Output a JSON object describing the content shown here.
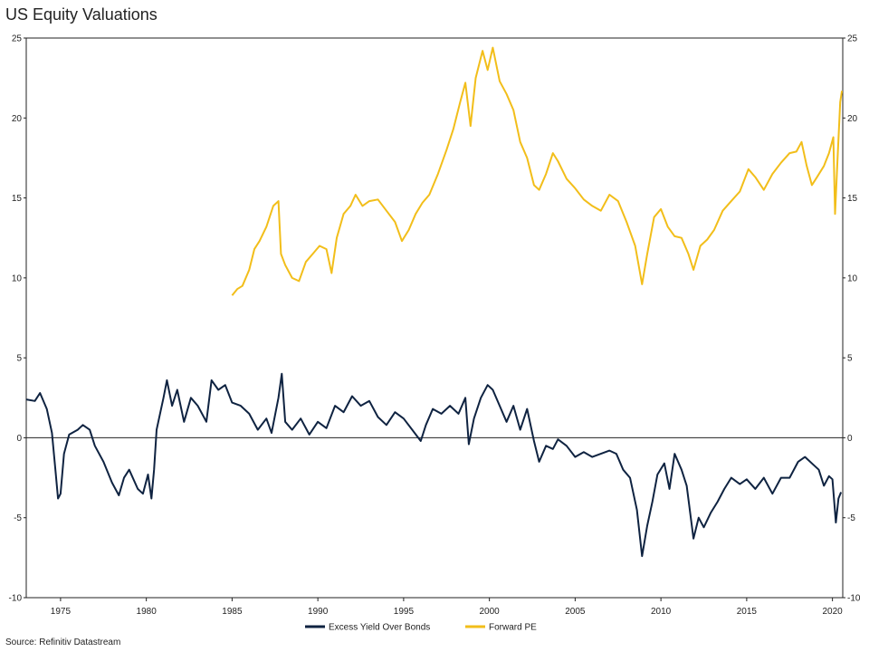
{
  "title": "US Equity Valuations",
  "source": "Source: Refinitiv Datastream",
  "chart_data": {
    "type": "line",
    "xlim": [
      1973.0,
      2020.6
    ],
    "ylim_left": [
      -10,
      25
    ],
    "ylim_right": [
      -10,
      25
    ],
    "y_ticks": [
      -10,
      -5,
      0,
      5,
      10,
      15,
      20,
      25
    ],
    "x_ticks": [
      1975,
      1980,
      1985,
      1990,
      1995,
      2000,
      2005,
      2010,
      2015,
      2020
    ],
    "grid": false,
    "legend_position": "bottom-center",
    "series": [
      {
        "name": "Excess Yield Over Bonds",
        "color": "#0f2341",
        "points": [
          [
            1973.0,
            2.4
          ],
          [
            1973.5,
            2.3
          ],
          [
            1973.8,
            2.8
          ],
          [
            1974.2,
            1.8
          ],
          [
            1974.5,
            0.3
          ],
          [
            1974.7,
            -2.0
          ],
          [
            1974.85,
            -3.8
          ],
          [
            1975.0,
            -3.5
          ],
          [
            1975.2,
            -1.0
          ],
          [
            1975.5,
            0.2
          ],
          [
            1976.0,
            0.5
          ],
          [
            1976.3,
            0.8
          ],
          [
            1976.7,
            0.5
          ],
          [
            1977.0,
            -0.5
          ],
          [
            1977.5,
            -1.5
          ],
          [
            1978.0,
            -2.8
          ],
          [
            1978.4,
            -3.6
          ],
          [
            1978.7,
            -2.5
          ],
          [
            1979.0,
            -2.0
          ],
          [
            1979.5,
            -3.2
          ],
          [
            1979.8,
            -3.5
          ],
          [
            1980.1,
            -2.3
          ],
          [
            1980.3,
            -3.8
          ],
          [
            1980.45,
            -2.0
          ],
          [
            1980.6,
            0.5
          ],
          [
            1980.8,
            1.5
          ],
          [
            1981.0,
            2.5
          ],
          [
            1981.2,
            3.6
          ],
          [
            1981.5,
            2.0
          ],
          [
            1981.8,
            3.0
          ],
          [
            1982.2,
            1.0
          ],
          [
            1982.6,
            2.5
          ],
          [
            1983.0,
            2.0
          ],
          [
            1983.5,
            1.0
          ],
          [
            1983.8,
            3.6
          ],
          [
            1984.2,
            3.0
          ],
          [
            1984.6,
            3.3
          ],
          [
            1985.0,
            2.2
          ],
          [
            1985.5,
            2.0
          ],
          [
            1986.0,
            1.5
          ],
          [
            1986.5,
            0.5
          ],
          [
            1987.0,
            1.2
          ],
          [
            1987.3,
            0.3
          ],
          [
            1987.7,
            2.5
          ],
          [
            1987.9,
            4.0
          ],
          [
            1988.1,
            1.0
          ],
          [
            1988.5,
            0.5
          ],
          [
            1989.0,
            1.2
          ],
          [
            1989.5,
            0.2
          ],
          [
            1990.0,
            1.0
          ],
          [
            1990.5,
            0.6
          ],
          [
            1991.0,
            2.0
          ],
          [
            1991.5,
            1.6
          ],
          [
            1992.0,
            2.6
          ],
          [
            1992.5,
            2.0
          ],
          [
            1993.0,
            2.3
          ],
          [
            1993.5,
            1.3
          ],
          [
            1994.0,
            0.8
          ],
          [
            1994.5,
            1.6
          ],
          [
            1995.0,
            1.2
          ],
          [
            1995.5,
            0.5
          ],
          [
            1996.0,
            -0.2
          ],
          [
            1996.3,
            0.8
          ],
          [
            1996.7,
            1.8
          ],
          [
            1997.2,
            1.5
          ],
          [
            1997.7,
            2.0
          ],
          [
            1998.2,
            1.5
          ],
          [
            1998.6,
            2.5
          ],
          [
            1998.8,
            -0.4
          ],
          [
            1999.1,
            1.2
          ],
          [
            1999.5,
            2.5
          ],
          [
            1999.9,
            3.3
          ],
          [
            2000.2,
            3.0
          ],
          [
            2000.6,
            2.0
          ],
          [
            2001.0,
            1.0
          ],
          [
            2001.4,
            2.0
          ],
          [
            2001.8,
            0.5
          ],
          [
            2002.2,
            1.8
          ],
          [
            2002.6,
            -0.2
          ],
          [
            2002.9,
            -1.5
          ],
          [
            2003.3,
            -0.5
          ],
          [
            2003.7,
            -0.7
          ],
          [
            2004.0,
            -0.1
          ],
          [
            2004.5,
            -0.5
          ],
          [
            2005.0,
            -1.2
          ],
          [
            2005.5,
            -0.9
          ],
          [
            2006.0,
            -1.2
          ],
          [
            2006.5,
            -1.0
          ],
          [
            2007.0,
            -0.8
          ],
          [
            2007.4,
            -1.0
          ],
          [
            2007.8,
            -2.0
          ],
          [
            2008.2,
            -2.5
          ],
          [
            2008.6,
            -4.5
          ],
          [
            2008.9,
            -7.4
          ],
          [
            2009.2,
            -5.5
          ],
          [
            2009.5,
            -4.0
          ],
          [
            2009.8,
            -2.3
          ],
          [
            2010.2,
            -1.6
          ],
          [
            2010.5,
            -3.2
          ],
          [
            2010.8,
            -1.0
          ],
          [
            2011.2,
            -2.0
          ],
          [
            2011.5,
            -3.0
          ],
          [
            2011.9,
            -6.3
          ],
          [
            2012.2,
            -5.0
          ],
          [
            2012.5,
            -5.6
          ],
          [
            2012.9,
            -4.7
          ],
          [
            2013.3,
            -4.0
          ],
          [
            2013.7,
            -3.2
          ],
          [
            2014.1,
            -2.5
          ],
          [
            2014.6,
            -2.9
          ],
          [
            2015.0,
            -2.6
          ],
          [
            2015.5,
            -3.2
          ],
          [
            2016.0,
            -2.5
          ],
          [
            2016.5,
            -3.5
          ],
          [
            2017.0,
            -2.5
          ],
          [
            2017.5,
            -2.5
          ],
          [
            2018.0,
            -1.5
          ],
          [
            2018.4,
            -1.2
          ],
          [
            2018.8,
            -1.6
          ],
          [
            2019.2,
            -2.0
          ],
          [
            2019.5,
            -3.0
          ],
          [
            2019.8,
            -2.4
          ],
          [
            2020.0,
            -2.6
          ],
          [
            2020.2,
            -5.3
          ],
          [
            2020.35,
            -3.8
          ],
          [
            2020.5,
            -3.4
          ]
        ]
      },
      {
        "name": "Forward PE",
        "color": "#f2be1a",
        "points": [
          [
            1985.0,
            8.9
          ],
          [
            1985.3,
            9.3
          ],
          [
            1985.6,
            9.5
          ],
          [
            1986.0,
            10.5
          ],
          [
            1986.3,
            11.8
          ],
          [
            1986.6,
            12.3
          ],
          [
            1987.0,
            13.2
          ],
          [
            1987.4,
            14.5
          ],
          [
            1987.7,
            14.8
          ],
          [
            1987.85,
            11.5
          ],
          [
            1988.1,
            10.8
          ],
          [
            1988.5,
            10.0
          ],
          [
            1988.9,
            9.8
          ],
          [
            1989.3,
            11.0
          ],
          [
            1989.7,
            11.5
          ],
          [
            1990.1,
            12.0
          ],
          [
            1990.5,
            11.8
          ],
          [
            1990.8,
            10.3
          ],
          [
            1991.1,
            12.5
          ],
          [
            1991.5,
            14.0
          ],
          [
            1991.9,
            14.5
          ],
          [
            1992.2,
            15.2
          ],
          [
            1992.6,
            14.5
          ],
          [
            1993.0,
            14.8
          ],
          [
            1993.5,
            14.9
          ],
          [
            1994.0,
            14.2
          ],
          [
            1994.5,
            13.5
          ],
          [
            1994.9,
            12.3
          ],
          [
            1995.3,
            13.0
          ],
          [
            1995.7,
            14.0
          ],
          [
            1996.1,
            14.7
          ],
          [
            1996.5,
            15.2
          ],
          [
            1997.0,
            16.5
          ],
          [
            1997.5,
            18.0
          ],
          [
            1997.9,
            19.3
          ],
          [
            1998.3,
            21.0
          ],
          [
            1998.6,
            22.2
          ],
          [
            1998.9,
            19.5
          ],
          [
            1999.2,
            22.5
          ],
          [
            1999.6,
            24.2
          ],
          [
            1999.9,
            23.0
          ],
          [
            2000.2,
            24.4
          ],
          [
            2000.6,
            22.3
          ],
          [
            2001.0,
            21.5
          ],
          [
            2001.4,
            20.5
          ],
          [
            2001.8,
            18.5
          ],
          [
            2002.2,
            17.5
          ],
          [
            2002.6,
            15.8
          ],
          [
            2002.9,
            15.5
          ],
          [
            2003.3,
            16.5
          ],
          [
            2003.7,
            17.8
          ],
          [
            2004.0,
            17.3
          ],
          [
            2004.5,
            16.2
          ],
          [
            2005.0,
            15.6
          ],
          [
            2005.5,
            14.9
          ],
          [
            2006.0,
            14.5
          ],
          [
            2006.5,
            14.2
          ],
          [
            2007.0,
            15.2
          ],
          [
            2007.5,
            14.8
          ],
          [
            2008.0,
            13.5
          ],
          [
            2008.5,
            12.0
          ],
          [
            2008.9,
            9.6
          ],
          [
            2009.2,
            11.5
          ],
          [
            2009.6,
            13.8
          ],
          [
            2010.0,
            14.3
          ],
          [
            2010.4,
            13.2
          ],
          [
            2010.8,
            12.6
          ],
          [
            2011.2,
            12.5
          ],
          [
            2011.6,
            11.5
          ],
          [
            2011.9,
            10.5
          ],
          [
            2012.3,
            12.0
          ],
          [
            2012.7,
            12.4
          ],
          [
            2013.1,
            13.0
          ],
          [
            2013.6,
            14.2
          ],
          [
            2014.1,
            14.8
          ],
          [
            2014.6,
            15.4
          ],
          [
            2015.1,
            16.8
          ],
          [
            2015.5,
            16.3
          ],
          [
            2016.0,
            15.5
          ],
          [
            2016.5,
            16.5
          ],
          [
            2017.0,
            17.2
          ],
          [
            2017.5,
            17.8
          ],
          [
            2017.9,
            17.9
          ],
          [
            2018.2,
            18.5
          ],
          [
            2018.5,
            17.0
          ],
          [
            2018.8,
            15.8
          ],
          [
            2019.1,
            16.3
          ],
          [
            2019.5,
            17.0
          ],
          [
            2019.8,
            17.8
          ],
          [
            2020.05,
            18.8
          ],
          [
            2020.15,
            14.0
          ],
          [
            2020.3,
            17.5
          ],
          [
            2020.45,
            21.0
          ],
          [
            2020.55,
            21.7
          ]
        ]
      }
    ]
  }
}
